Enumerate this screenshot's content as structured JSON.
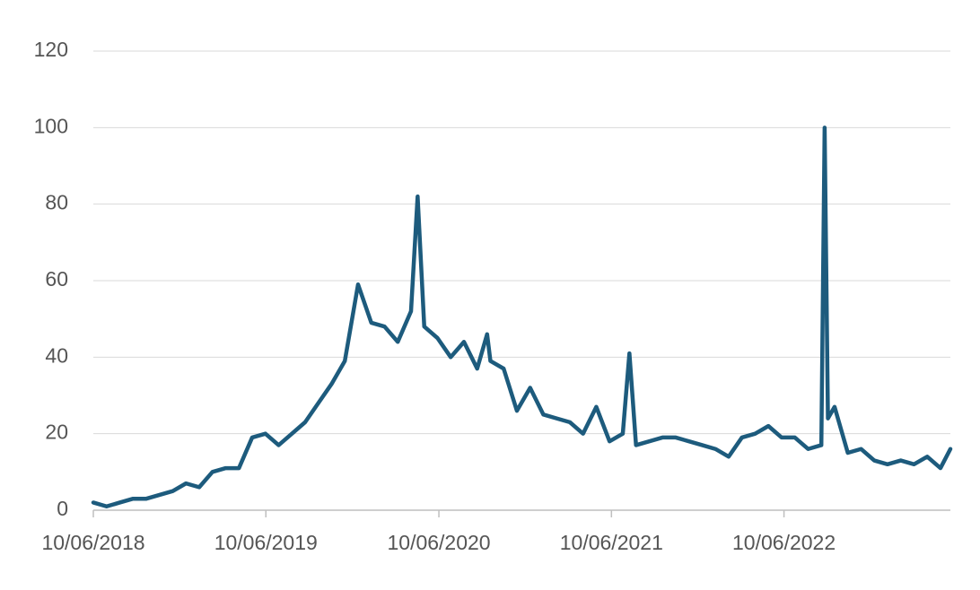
{
  "chart_data": {
    "type": "line",
    "x": [
      "10/06/2018",
      "08/07/2018",
      "05/08/2018",
      "02/09/2018",
      "30/09/2018",
      "28/10/2018",
      "25/11/2018",
      "23/12/2018",
      "20/01/2019",
      "17/02/2019",
      "17/03/2019",
      "14/04/2019",
      "12/05/2019",
      "09/06/2019",
      "07/07/2019",
      "04/08/2019",
      "01/09/2019",
      "29/09/2019",
      "27/10/2019",
      "24/11/2019",
      "22/12/2019",
      "19/01/2020",
      "16/02/2020",
      "15/03/2020",
      "12/04/2020",
      "26/04/2020",
      "10/05/2020",
      "07/06/2020",
      "05/07/2020",
      "02/08/2020",
      "30/08/2020",
      "20/09/2020",
      "27/09/2020",
      "25/10/2020",
      "22/11/2020",
      "20/12/2020",
      "17/01/2021",
      "14/02/2021",
      "14/03/2021",
      "11/04/2021",
      "09/05/2021",
      "06/06/2021",
      "04/07/2021",
      "18/07/2021",
      "01/08/2021",
      "29/08/2021",
      "26/09/2021",
      "24/10/2021",
      "21/11/2021",
      "19/12/2021",
      "16/01/2022",
      "13/02/2022",
      "13/03/2022",
      "10/04/2022",
      "08/05/2022",
      "05/06/2022",
      "03/07/2022",
      "31/07/2022",
      "28/08/2022",
      "04/09/2022",
      "11/09/2022",
      "25/09/2022",
      "23/10/2022",
      "20/11/2022",
      "18/12/2022",
      "15/01/2023",
      "12/02/2023",
      "12/03/2023",
      "09/04/2023",
      "07/05/2023",
      "28/05/2023"
    ],
    "series": [
      {
        "color": "#1d5b7d",
        "values": [
          2,
          1,
          2,
          3,
          3,
          4,
          5,
          7,
          6,
          10,
          11,
          11,
          19,
          20,
          17,
          20,
          23,
          28,
          33,
          39,
          59,
          49,
          48,
          44,
          52,
          82,
          48,
          45,
          40,
          44,
          37,
          46,
          39,
          37,
          26,
          32,
          25,
          24,
          23,
          20,
          27,
          18,
          20,
          41,
          17,
          18,
          19,
          19,
          18,
          17,
          16,
          14,
          19,
          20,
          22,
          19,
          19,
          16,
          17,
          100,
          24,
          27,
          15,
          16,
          13,
          12,
          13,
          12,
          14,
          11,
          16
        ]
      }
    ],
    "xlim": [
      "10/06/2018",
      "28/05/2023"
    ],
    "xticks": [
      "10/06/2018",
      "10/06/2019",
      "10/06/2020",
      "10/06/2021",
      "10/06/2022"
    ],
    "ylim": [
      0,
      120
    ],
    "yticks": [
      0,
      20,
      40,
      60,
      80,
      100,
      120
    ],
    "grid": true
  }
}
